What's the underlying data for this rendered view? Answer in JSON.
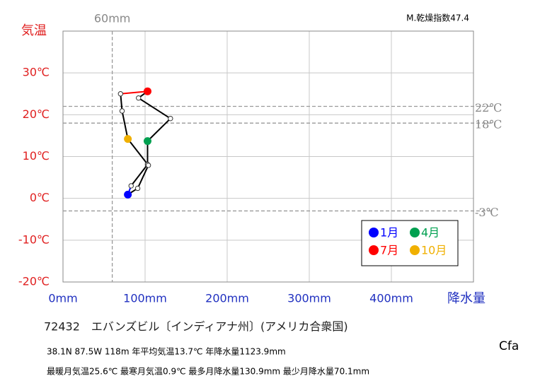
{
  "chart_data": {
    "type": "climograph",
    "y_label": "気温",
    "x_label": "降水量",
    "index_label": "M.乾燥指数47.4",
    "x": [
      79,
      83,
      103,
      103,
      130.9,
      92,
      103,
      70.1,
      72,
      79,
      104,
      91
    ],
    "values": [
      0.9,
      3.0,
      8.1,
      13.7,
      19.1,
      24.0,
      25.6,
      25.0,
      20.9,
      14.2,
      7.9,
      2.4
    ],
    "point_labels": [
      "1月",
      null,
      null,
      "4月",
      null,
      null,
      "7月",
      null,
      null,
      "10月",
      null,
      null
    ],
    "marker_colors": [
      "#0000ff",
      "#ffffff",
      "#ffffff",
      "#00a050",
      "#ffffff",
      "#ffffff",
      "#ff0000",
      "#ffffff",
      "#ffffff",
      "#f0b000",
      "#ffffff",
      "#ffffff"
    ],
    "segment_colors": [
      "#0000ff",
      "#000000",
      "#000000",
      "#000000",
      "#000000",
      "#000000",
      "#ff0000",
      "#000000",
      "#000000",
      "#000000",
      "#000000",
      "#000000"
    ],
    "xlim": [
      0,
      500
    ],
    "ylim": [
      -20,
      40
    ],
    "xticks": [
      {
        "value": 0,
        "label": "0mm"
      },
      {
        "value": 100,
        "label": "100mm"
      },
      {
        "value": 200,
        "label": "200mm"
      },
      {
        "value": 300,
        "label": "300mm"
      },
      {
        "value": 400,
        "label": "400mm"
      }
    ],
    "yticks": [
      {
        "value": -20,
        "label": "-20℃"
      },
      {
        "value": -10,
        "label": "-10℃"
      },
      {
        "value": 0,
        "label": "0℃"
      },
      {
        "value": 10,
        "label": "10℃"
      },
      {
        "value": 20,
        "label": "20℃"
      },
      {
        "value": 30,
        "label": "30℃"
      }
    ],
    "ref_lines": [
      {
        "value": 22,
        "label": "22℃"
      },
      {
        "value": 18,
        "label": "18℃"
      },
      {
        "value": -3,
        "label": "-3℃"
      }
    ],
    "x_ref": {
      "value": 60,
      "label": "60mm"
    },
    "station": "72432　エバンズビル〔インディアナ州〕(アメリカ合衆国)",
    "notes": [
      "38.1N  87.5W 118m  年平均気温13.7℃ 年降水量1123.9mm",
      "最暖月気温25.6℃ 最寒月気温0.9℃ 最多月降水量130.9mm 最少月降水量70.1mm"
    ],
    "climate": "Cfa",
    "grid": true
  }
}
